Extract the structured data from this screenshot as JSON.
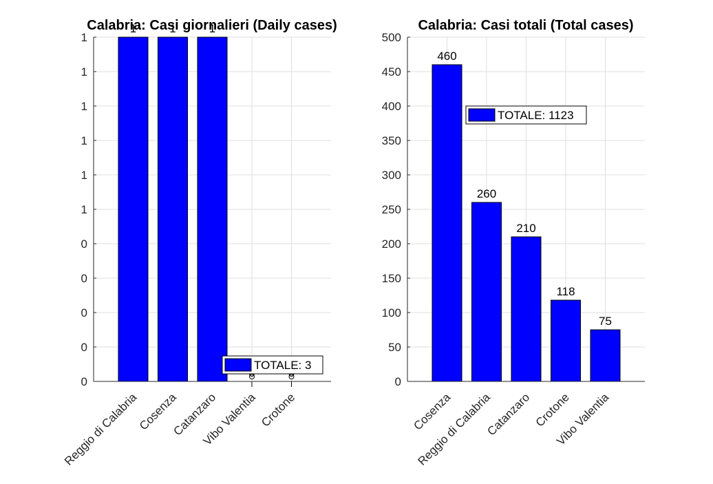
{
  "colors": {
    "bar": "#0000ff",
    "axis": "#262626",
    "grid": "#dfdfdf"
  },
  "chart_data": [
    {
      "type": "bar",
      "title": "Calabria: Casi giornalieri (Daily cases)",
      "categories": [
        "Reggio di Calabria",
        "Cosenza",
        "Catanzaro",
        "Vibo Valentia",
        "Crotone"
      ],
      "values": [
        1,
        1,
        1,
        0,
        0
      ],
      "data_labels": [
        "1",
        "1",
        "1",
        "0",
        "0"
      ],
      "ylim": [
        0,
        1
      ],
      "yticks": [
        0,
        0.1,
        0.2,
        0.3,
        0.4,
        0.5,
        0.6,
        0.7,
        0.8,
        0.9,
        1
      ],
      "ytick_labels": [
        "0",
        "0",
        "0",
        "0",
        "0",
        "1",
        "1",
        "1",
        "1",
        "1",
        "1"
      ],
      "grid": true,
      "legend": {
        "label": "TOTALE: 3",
        "location": "bottom-right"
      },
      "xlabel": "",
      "ylabel": ""
    },
    {
      "type": "bar",
      "title": "Calabria: Casi totali (Total cases)",
      "categories": [
        "Cosenza",
        "Reggio di Calabria",
        "Catanzaro",
        "Crotone",
        "Vibo Valentia"
      ],
      "values": [
        460,
        260,
        210,
        118,
        75
      ],
      "data_labels": [
        "460",
        "260",
        "210",
        "118",
        "75"
      ],
      "ylim": [
        0,
        500
      ],
      "yticks": [
        0,
        50,
        100,
        150,
        200,
        250,
        300,
        350,
        400,
        450,
        500
      ],
      "ytick_labels": [
        "0",
        "50",
        "100",
        "150",
        "200",
        "250",
        "300",
        "350",
        "400",
        "450",
        "500"
      ],
      "grid": true,
      "legend": {
        "label": "TOTALE: 1123",
        "location": "top-right"
      },
      "xlabel": "",
      "ylabel": ""
    }
  ]
}
